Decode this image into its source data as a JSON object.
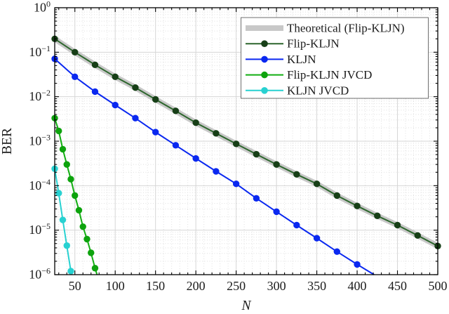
{
  "chart_data": {
    "type": "line",
    "title": "",
    "xlabel": "N",
    "ylabel": "BER",
    "x_axis": {
      "min": 25,
      "max": 500,
      "major_tick_values": [
        50,
        100,
        150,
        200,
        250,
        300,
        350,
        400,
        450,
        500
      ],
      "tick_labels": [
        "50",
        "100",
        "150",
        "200",
        "250",
        "300",
        "350",
        "400",
        "450",
        "500"
      ],
      "minor_tick_step": 10
    },
    "y_axis": {
      "scale": "log10",
      "top_value": 1,
      "bottom_value": 1e-06,
      "tick_labels": [
        {
          "base": "10",
          "exp": "0"
        },
        {
          "base": "10",
          "exp": "−1"
        },
        {
          "base": "10",
          "exp": "−2"
        },
        {
          "base": "10",
          "exp": "−3"
        },
        {
          "base": "10",
          "exp": "−4"
        },
        {
          "base": "10",
          "exp": "−5"
        },
        {
          "base": "10",
          "exp": "−6"
        }
      ]
    },
    "grid": {
      "major": true,
      "minor_dotted": true
    },
    "legend": {
      "position": "top-right",
      "background": "#ffffff",
      "border_color": "#6e6e6e"
    },
    "series": [
      {
        "name": "Theoretical (Flip-KLJN)",
        "style": "band",
        "color": "#c8c8c8",
        "line_width": 8,
        "x": [
          25,
          50,
          75,
          100,
          125,
          150,
          175,
          200,
          225,
          250,
          275,
          300,
          325,
          350,
          375,
          400,
          425,
          450,
          475,
          500
        ],
        "ber": [
          0.2,
          0.1,
          0.052,
          0.028,
          0.016,
          0.0087,
          0.0048,
          0.0026,
          0.0015,
          0.00087,
          0.00051,
          0.0003,
          0.00018,
          0.00011,
          6e-05,
          3.5e-05,
          2.1e-05,
          1.3e-05,
          7.6e-06,
          4.4e-06
        ]
      },
      {
        "name": "Flip-KLJN",
        "style": "line-marker",
        "color": "#2d662d",
        "marker_color": "#173f17",
        "line_width": 2,
        "x": [
          25,
          50,
          75,
          100,
          125,
          150,
          175,
          200,
          225,
          250,
          275,
          300,
          325,
          350,
          375,
          400,
          425,
          450,
          475,
          500
        ],
        "ber": [
          0.2,
          0.1,
          0.052,
          0.028,
          0.016,
          0.0087,
          0.0048,
          0.0026,
          0.0015,
          0.00087,
          0.00051,
          0.0003,
          0.00018,
          0.00011,
          6e-05,
          3.5e-05,
          2.1e-05,
          1.3e-05,
          7.6e-06,
          4.4e-06
        ]
      },
      {
        "name": "KLJN",
        "style": "line-marker",
        "color": "#0a28f0",
        "marker_color": "#0a28f0",
        "line_width": 2,
        "x": [
          25,
          50,
          75,
          100,
          125,
          150,
          175,
          200,
          225,
          250,
          275,
          300,
          325,
          350,
          375,
          400
        ],
        "ber": [
          0.071,
          0.028,
          0.013,
          0.0065,
          0.0033,
          0.0016,
          0.00081,
          0.00041,
          0.00021,
          0.00011,
          5.2e-05,
          2.6e-05,
          1.3e-05,
          6.6e-06,
          3.3e-06,
          1.7e-06
        ],
        "line_end": {
          "x": 421,
          "ber": 1e-06
        }
      },
      {
        "name": "Flip-KLJN JVCD",
        "style": "line-marker",
        "color": "#12ae12",
        "marker_color": "#0da30d",
        "line_width": 2,
        "x": [
          25,
          30,
          35,
          40,
          45,
          50,
          55,
          60,
          65,
          70,
          75
        ],
        "ber": [
          0.0033,
          0.0017,
          0.00066,
          0.0003,
          0.00014,
          6e-05,
          2.8e-05,
          1.2e-05,
          6.3e-06,
          3.1e-06,
          1.4e-06
        ],
        "line_end": {
          "x": 77.5,
          "ber": 1e-06
        }
      },
      {
        "name": "KLJN JVCD",
        "style": "line-marker",
        "color": "#28d1d1",
        "marker_color": "#28d1d1",
        "line_width": 2,
        "x": [
          25,
          30,
          35,
          40,
          45
        ],
        "ber": [
          0.00024,
          6.8e-05,
          1.7e-05,
          4.5e-06,
          1.2e-06
        ],
        "line_end": {
          "x": 46.5,
          "ber": 1e-06
        }
      }
    ]
  }
}
